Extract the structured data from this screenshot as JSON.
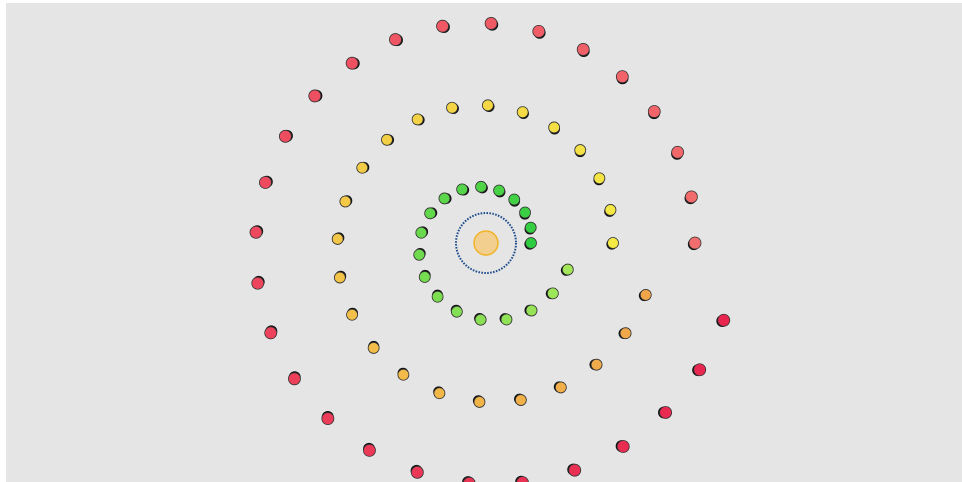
{
  "scene": {
    "background": "#e5e5e5",
    "sun": {
      "fill": "#f2cf8e",
      "stroke": "#f0b429"
    },
    "core_ring": {
      "stroke": "#1f4e8c",
      "dots": 64
    },
    "outline": "#333333",
    "shadow": "#111111"
  },
  "rings": [
    {
      "name": "inner",
      "count": 19,
      "spiral": true,
      "colors": {
        "start": "#2ecc40",
        "end": "#a3e65a"
      },
      "shadow_phase": "rotating"
    },
    {
      "name": "middle",
      "count": 24,
      "spiral": true,
      "colors": {
        "start": "#f5ea45",
        "end": "#f0a54a"
      },
      "shadow_phase": "rotating"
    },
    {
      "name": "outer",
      "count": 28,
      "spiral": true,
      "colors": {
        "start": "#f26d6d",
        "end": "#e8254f"
      },
      "shadow_phase": "rotating"
    }
  ]
}
